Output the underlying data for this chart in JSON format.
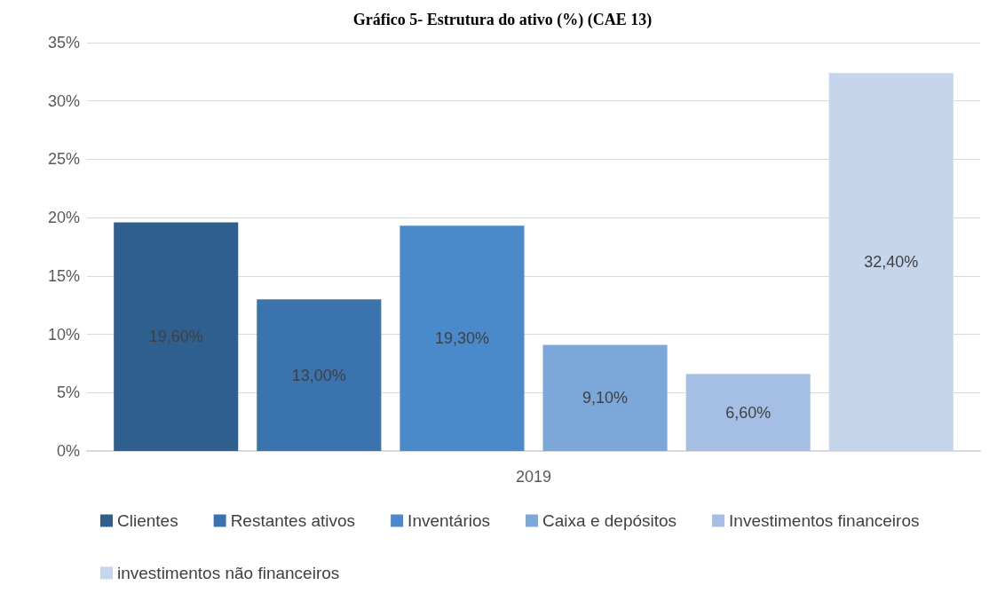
{
  "chart_data": {
    "type": "bar",
    "title": "Gráfico 5- Estrutura do ativo (%) (CAE 13)",
    "categories": [
      "2019"
    ],
    "series": [
      {
        "name": "Clientes",
        "color": "#2f5f8e",
        "values": [
          19.6
        ],
        "value_labels": [
          "19,60%"
        ]
      },
      {
        "name": "Restantes ativos",
        "color": "#3a73ad",
        "values": [
          13.0
        ],
        "value_labels": [
          "13,00%"
        ]
      },
      {
        "name": "Inventários",
        "color": "#4a8acb",
        "values": [
          19.3
        ],
        "value_labels": [
          "19,30%"
        ]
      },
      {
        "name": "Caixa e depósitos",
        "color": "#7ba7d9",
        "values": [
          9.1
        ],
        "value_labels": [
          "9,10%"
        ]
      },
      {
        "name": "Investimentos financeiros",
        "color": "#a4bfe3",
        "values": [
          6.6
        ],
        "value_labels": [
          "6,60%"
        ]
      },
      {
        "name": "investimentos não financeiros",
        "color": "#c5d5eb",
        "values": [
          32.4
        ],
        "value_labels": [
          "32,40%"
        ]
      }
    ],
    "ylim": [
      0,
      35
    ],
    "yticks": [
      {
        "value": 0,
        "label": "0%"
      },
      {
        "value": 5,
        "label": "5%"
      },
      {
        "value": 10,
        "label": "10%"
      },
      {
        "value": 15,
        "label": "15%"
      },
      {
        "value": 20,
        "label": "20%"
      },
      {
        "value": 25,
        "label": "25%"
      },
      {
        "value": 30,
        "label": "30%"
      },
      {
        "value": 35,
        "label": "35%"
      }
    ],
    "grid": "y",
    "legend": "bottom"
  }
}
